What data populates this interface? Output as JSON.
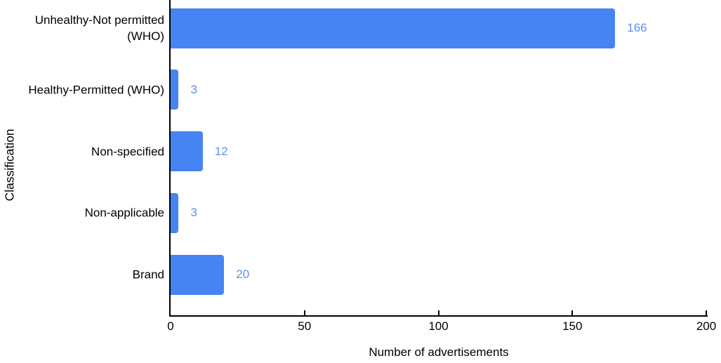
{
  "chart_data": {
    "type": "bar",
    "orientation": "horizontal",
    "title": "",
    "xlabel": "Number of advertisements",
    "ylabel": "Classification",
    "categories": [
      "Unhealthy-Not permitted (WHO)",
      "Healthy-Permitted (WHO)",
      "Non-specified",
      "Non-applicable",
      "Brand"
    ],
    "category_lines": [
      [
        "Unhealthy-Not permitted",
        "(WHO)"
      ],
      [
        "Healthy-Permitted (WHO)"
      ],
      [
        "Non-specified"
      ],
      [
        "Non-applicable"
      ],
      [
        "Brand"
      ]
    ],
    "values": [
      166,
      3,
      12,
      3,
      20
    ],
    "value_labels": [
      "166",
      "3",
      "12",
      "3",
      "20"
    ],
    "xlim": [
      0,
      200
    ],
    "xticks": [
      0,
      50,
      100,
      150,
      200
    ],
    "xtick_labels": [
      "0",
      "50",
      "100",
      "150",
      "200"
    ],
    "grid": false,
    "legend": "none",
    "bar_color": "#4684F4",
    "value_label_color": "#5A8FF2",
    "axis_color": "#000000",
    "text_color": "#000000"
  }
}
